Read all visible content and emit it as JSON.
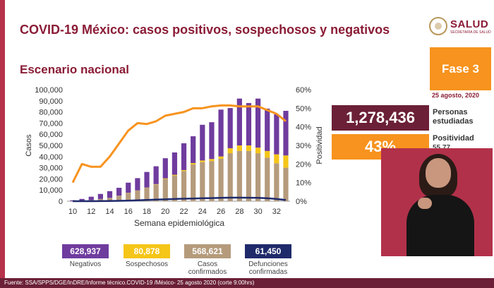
{
  "slide": {
    "title": "COVID-19 México: casos positivos, sospechosos y negativos",
    "subtitle": "Escenario nacional"
  },
  "logo": {
    "name": "SALUD",
    "sub": "SECRETARÍA DE SALUD"
  },
  "phase": {
    "label": "Fase 3",
    "date": "25 agosto, 2020"
  },
  "kpis": {
    "persons": {
      "value": "1,278,436",
      "label_line1": "Personas",
      "label_line2": "estudiadas"
    },
    "positivity": {
      "value": "43%",
      "label_line1": "Positividad",
      "label_line2": "55.77"
    }
  },
  "legend": [
    {
      "key": "negativos",
      "value": "628,937",
      "label_line1": "Negativos",
      "label_line2": "",
      "color": "#6f3c9e",
      "text_color": "#ffffff"
    },
    {
      "key": "sospechosos",
      "value": "80,878",
      "label_line1": "Sospechosos",
      "label_line2": "",
      "color": "#f5c518",
      "text_color": "#ffffff"
    },
    {
      "key": "confirmados",
      "value": "568,621",
      "label_line1": "Casos",
      "label_line2": "confirmados",
      "color": "#b59b7c",
      "text_color": "#ffffff"
    },
    {
      "key": "defunciones",
      "value": "61,450",
      "label_line1": "Defunciones",
      "label_line2": "confirmadas",
      "color": "#1f2a6b",
      "text_color": "#ffffff"
    }
  ],
  "footer": {
    "text": "Fuente: SSA/SPPS/DGE/InDRE/Informe técnico.COVID-19 /México- 25 agosto 2020 (corte 9:00hrs)"
  },
  "chart_data": {
    "type": "bar",
    "stacked": true,
    "xlabel": "Semana epidemiológica",
    "ylabel": "Casos",
    "y2label": "Positividad",
    "x": [
      10,
      11,
      12,
      13,
      14,
      15,
      16,
      17,
      18,
      19,
      20,
      21,
      22,
      23,
      24,
      25,
      26,
      27,
      28,
      29,
      30,
      31,
      32,
      33
    ],
    "x_ticks": [
      10,
      12,
      14,
      16,
      18,
      20,
      22,
      24,
      26,
      28,
      30,
      32
    ],
    "ylim": [
      0,
      100000
    ],
    "y_ticks": [
      0,
      10000,
      20000,
      30000,
      40000,
      50000,
      60000,
      70000,
      80000,
      90000,
      100000
    ],
    "y_tick_labels": [
      "0",
      "10,000",
      "20,000",
      "30,000",
      "40,000",
      "50,000",
      "60,000",
      "70,000",
      "80,000",
      "90,000",
      "100,000"
    ],
    "y2lim": [
      0,
      60
    ],
    "y2_ticks": [
      0,
      10,
      20,
      30,
      40,
      50,
      60
    ],
    "y2_tick_labels": [
      "0%",
      "10%",
      "20%",
      "30%",
      "40%",
      "50%",
      "60%"
    ],
    "grid": false,
    "series": [
      {
        "name": "Casos confirmados",
        "color": "#b59b7c",
        "values": [
          100,
          400,
          1000,
          2000,
          3000,
          5000,
          7500,
          9500,
          12000,
          15000,
          20000,
          23000,
          27000,
          33000,
          35000,
          36000,
          38000,
          43000,
          45000,
          45000,
          43000,
          39000,
          34000,
          30000
        ]
      },
      {
        "name": "Sospechosos",
        "color": "#f5c518",
        "values": [
          0,
          0,
          0,
          0,
          0,
          0,
          100,
          150,
          200,
          300,
          500,
          700,
          900,
          1200,
          1500,
          1800,
          2100,
          4500,
          5000,
          5000,
          5000,
          6000,
          8000,
          11000
        ]
      },
      {
        "name": "Negativos",
        "color": "#6f3c9e",
        "values": [
          700,
          1600,
          3000,
          4500,
          6000,
          7000,
          9000,
          11000,
          14000,
          16000,
          18000,
          20000,
          24000,
          24000,
          32000,
          33000,
          42000,
          36000,
          42000,
          38000,
          44000,
          38000,
          36000,
          40000
        ]
      }
    ],
    "deaths": {
      "name": "Defunciones",
      "color": "#1f2a6b",
      "values": [
        0,
        10,
        30,
        80,
        150,
        300,
        500,
        800,
        1100,
        1400,
        1700,
        2000,
        2200,
        2400,
        2600,
        2800,
        3000,
        3200,
        3200,
        3100,
        3000,
        2600,
        2000,
        1000
      ]
    },
    "positivity": {
      "name": "Positividad",
      "color": "#f7931e",
      "values": [
        10,
        20,
        18.5,
        18.5,
        24,
        31,
        38,
        42,
        41.5,
        43,
        46,
        47,
        48,
        50,
        50,
        51,
        51.5,
        51.5,
        51,
        51,
        51,
        49,
        47,
        43
      ]
    }
  }
}
